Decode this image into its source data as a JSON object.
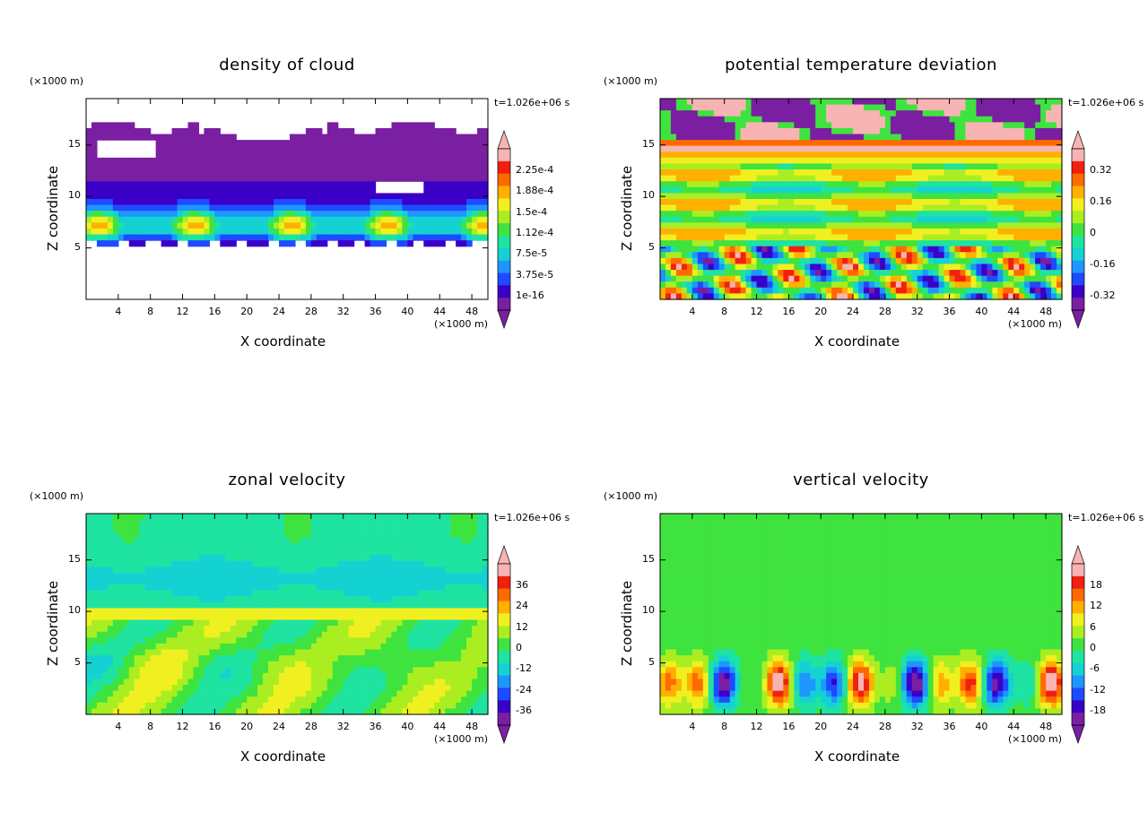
{
  "chart_data": [
    {
      "type": "heatmap",
      "title": "density of cloud",
      "xlabel": "X coordinate",
      "ylabel": "Z coordinate",
      "x_unit": "(×1000 m)",
      "y_unit": "(×1000 m)",
      "time_label": "t=1.026e+06 s",
      "xlim": [
        0,
        50
      ],
      "ylim": [
        0,
        19.5
      ],
      "x_ticks": [
        "4",
        "8",
        "12",
        "16",
        "20",
        "24",
        "28",
        "32",
        "36",
        "40",
        "44",
        "48"
      ],
      "y_ticks": [
        "5",
        "10",
        "15"
      ],
      "colorbar_labels": [
        "2.25e-4",
        "1.88e-4",
        "1.5e-4",
        "1.12e-4",
        "7.5e-5",
        "3.75e-5",
        "1e-16"
      ],
      "field": "cloud",
      "missing_below_min": true
    },
    {
      "type": "heatmap",
      "title": "potential temperature deviation",
      "xlabel": "X coordinate",
      "ylabel": "Z coordinate",
      "x_unit": "(×1000 m)",
      "y_unit": "(×1000 m)",
      "time_label": "t=1.026e+06 s",
      "xlim": [
        0,
        50
      ],
      "ylim": [
        0,
        19.5
      ],
      "x_ticks": [
        "4",
        "8",
        "12",
        "16",
        "20",
        "24",
        "28",
        "32",
        "36",
        "40",
        "44",
        "48"
      ],
      "y_ticks": [
        "5",
        "10",
        "15"
      ],
      "colorbar_labels": [
        "0.32",
        "0.16",
        "0",
        "-0.16",
        "-0.32"
      ],
      "field": "theta",
      "missing_below_min": false
    },
    {
      "type": "heatmap",
      "title": "zonal velocity",
      "xlabel": "X coordinate",
      "ylabel": "Z coordinate",
      "x_unit": "(×1000 m)",
      "y_unit": "(×1000 m)",
      "time_label": "t=1.026e+06 s",
      "xlim": [
        0,
        50
      ],
      "ylim": [
        0,
        19.5
      ],
      "x_ticks": [
        "4",
        "8",
        "12",
        "16",
        "20",
        "24",
        "28",
        "32",
        "36",
        "40",
        "44",
        "48"
      ],
      "y_ticks": [
        "5",
        "10",
        "15"
      ],
      "colorbar_labels": [
        "36",
        "24",
        "12",
        "0",
        "-12",
        "-24",
        "-36"
      ],
      "field": "u",
      "missing_below_min": false
    },
    {
      "type": "heatmap",
      "title": "vertical velocity",
      "xlabel": "X coordinate",
      "ylabel": "Z coordinate",
      "x_unit": "(×1000 m)",
      "y_unit": "(×1000 m)",
      "time_label": "t=1.026e+06 s",
      "xlim": [
        0,
        50
      ],
      "ylim": [
        0,
        19.5
      ],
      "x_ticks": [
        "4",
        "8",
        "12",
        "16",
        "20",
        "24",
        "28",
        "32",
        "36",
        "40",
        "44",
        "48"
      ],
      "y_ticks": [
        "5",
        "10",
        "15"
      ],
      "colorbar_labels": [
        "18",
        "12",
        "6",
        "0",
        "-6",
        "-12",
        "-18"
      ],
      "field": "w",
      "missing_below_min": false
    }
  ],
  "palette": [
    "#7a1fa2",
    "#3b00c8",
    "#1e4bff",
    "#1e96ff",
    "#15d2d2",
    "#1fe3a0",
    "#3fe33f",
    "#aaee22",
    "#f0f020",
    "#ffb000",
    "#ff6a00",
    "#f02010",
    "#f8b4b4"
  ]
}
